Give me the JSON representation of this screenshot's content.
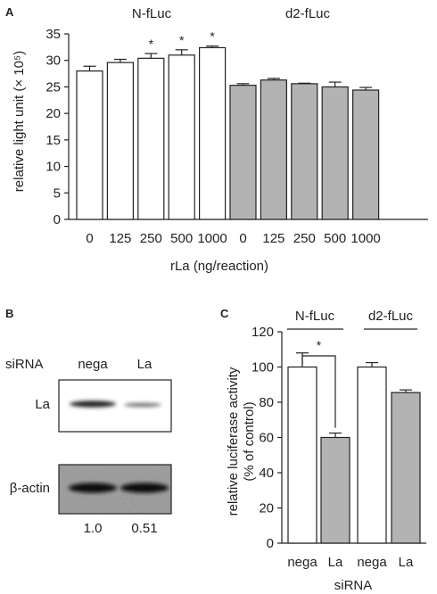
{
  "panels": {
    "a": {
      "label": "A",
      "chart_data": {
        "type": "bar",
        "group_labels": [
          "N-fLuc",
          "d2-fLuc"
        ],
        "categories": [
          "0",
          "125",
          "250",
          "500",
          "1000"
        ],
        "series": [
          {
            "name": "N-fLuc",
            "values": [
              28.0,
              29.6,
              30.4,
              31.0,
              32.4
            ],
            "errors": [
              0.9,
              0.6,
              0.9,
              1.0,
              0.3
            ],
            "sig": [
              "",
              "",
              "*",
              "*",
              "*"
            ],
            "fill": "#ffffff"
          },
          {
            "name": "d2-fLuc",
            "values": [
              25.3,
              26.3,
              25.6,
              25.0,
              24.4
            ],
            "errors": [
              0.3,
              0.3,
              0.1,
              0.9,
              0.5
            ],
            "sig": [
              "",
              "",
              "",
              "",
              ""
            ],
            "fill": "#b3b3b3"
          }
        ],
        "ylabel": "relative light unit (× 10⁵)",
        "xlabel": "rLa (ng/reaction)",
        "ylim": [
          0,
          35
        ],
        "yticks": [
          0,
          5,
          10,
          15,
          20,
          25,
          30,
          35
        ]
      }
    },
    "b": {
      "label": "B",
      "sirna_label": "siRNA",
      "lanes": [
        "nega",
        "La"
      ],
      "rows": [
        "La",
        "β-actin"
      ],
      "quant": [
        "1.0",
        "0.51"
      ]
    },
    "c": {
      "label": "C",
      "chart_data": {
        "type": "bar",
        "group_labels": [
          "N-fLuc",
          "d2-fLuc"
        ],
        "categories": [
          "nega",
          "La",
          "nega",
          "La"
        ],
        "values": [
          100,
          60,
          100,
          85.5
        ],
        "errors": [
          8,
          2.5,
          2.5,
          1.5
        ],
        "fills": [
          "#ffffff",
          "#b3b3b3",
          "#ffffff",
          "#b3b3b3"
        ],
        "significance": "*",
        "ylabel_lines": [
          "relative luciferase activity",
          "(% of control)"
        ],
        "xlabel": "siRNA",
        "ylim": [
          0,
          120
        ],
        "yticks": [
          0,
          20,
          40,
          60,
          80,
          100,
          120
        ]
      }
    }
  }
}
